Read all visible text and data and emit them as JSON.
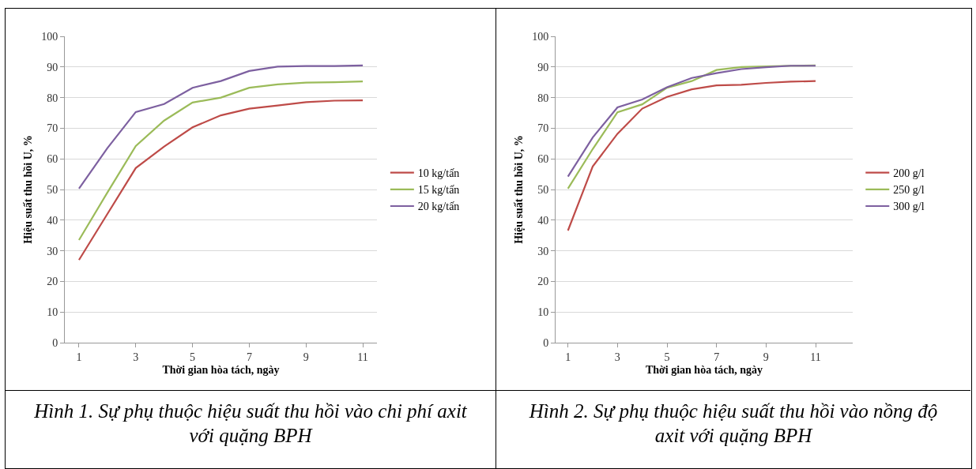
{
  "chart_data": [
    {
      "type": "line",
      "xlabel": "Thời gian hòa tách, ngày",
      "ylabel": "Hiệu suất thu hồi U, %",
      "annotations": [
        "Hình 1. Sự phụ thuộc hiệu suất thu hồi vào chi phí axit với quặng BPH"
      ],
      "x": [
        1,
        2,
        3,
        4,
        5,
        6,
        7,
        8,
        9,
        10,
        11
      ],
      "xlim": [
        0.5,
        11.5
      ],
      "xticks": [
        1,
        3,
        5,
        7,
        9,
        11
      ],
      "ylim": [
        0,
        100
      ],
      "yticks": [
        0,
        10,
        20,
        30,
        40,
        50,
        60,
        70,
        80,
        90,
        100
      ],
      "grid": "y",
      "legend": "right",
      "marker": "none",
      "line_style": "solid",
      "series": [
        {
          "name": "10 kg/tấn",
          "color": "#be4b48",
          "values": [
            27,
            42,
            57,
            64,
            70.3,
            74.2,
            76.4,
            77.4,
            78.5,
            79,
            79.1
          ]
        },
        {
          "name": "15 kg/tấn",
          "color": "#9bbb59",
          "values": [
            33.5,
            49,
            64.2,
            72.5,
            78.4,
            80,
            83.2,
            84.3,
            84.9,
            85,
            85.3
          ]
        },
        {
          "name": "20 kg/tấn",
          "color": "#7d60a0",
          "values": [
            50.3,
            63.5,
            75.3,
            77.9,
            83.2,
            85.4,
            88.7,
            90.1,
            90.3,
            90.3,
            90.5
          ]
        }
      ]
    },
    {
      "type": "line",
      "xlabel": "Thời gian hòa tách, ngày",
      "ylabel": "Hiệu suất thu hồi U, %",
      "annotations": [
        "Hình 2. Sự phụ thuộc hiệu suất thu hồi vào nồng độ axit với quặng BPH"
      ],
      "x": [
        1,
        2,
        3,
        4,
        5,
        6,
        7,
        8,
        9,
        10,
        11
      ],
      "xlim": [
        0.5,
        12.5
      ],
      "xticks": [
        1,
        3,
        5,
        7,
        9,
        11
      ],
      "ylim": [
        0,
        100
      ],
      "yticks": [
        0,
        10,
        20,
        30,
        40,
        50,
        60,
        70,
        80,
        90,
        100
      ],
      "grid": "y",
      "legend": "right",
      "marker": "none",
      "line_style": "solid",
      "series": [
        {
          "name": "200 g/l",
          "color": "#be4b48",
          "values": [
            36.6,
            57.5,
            68.2,
            76.4,
            80.2,
            82.7,
            84,
            84.2,
            84.8,
            85.2,
            85.4
          ]
        },
        {
          "name": "250 g/l",
          "color": "#9bbb59",
          "values": [
            50.3,
            63.2,
            75.2,
            77.8,
            83.2,
            85.4,
            89,
            90,
            90.2,
            90.4,
            90.5
          ]
        },
        {
          "name": "300 g/l",
          "color": "#7d60a0",
          "values": [
            54.2,
            67,
            76.8,
            79.4,
            83.4,
            86.4,
            88,
            89.3,
            89.9,
            90.4,
            90.4
          ]
        }
      ]
    }
  ]
}
